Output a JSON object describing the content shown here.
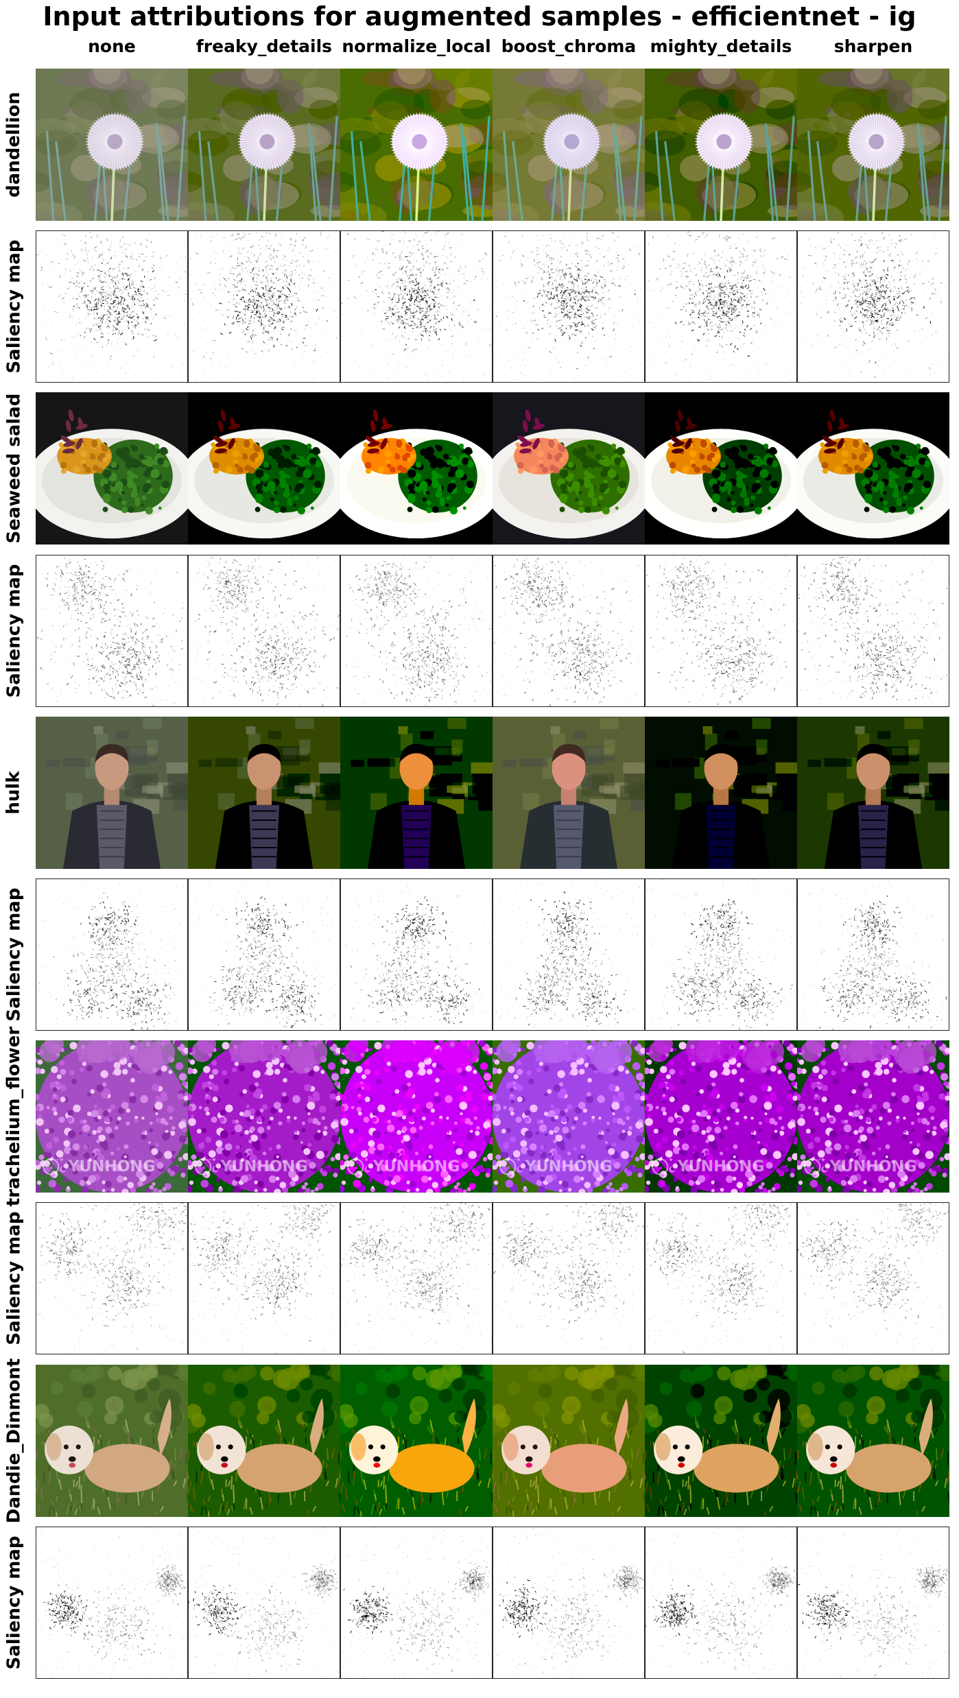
{
  "title": "Input attributions for augmented samples - efficientnet - ig",
  "columns": [
    "none",
    "freaky_details",
    "normalize_local",
    "boost_chroma",
    "mighty_details",
    "sharpen"
  ],
  "rows": [
    {
      "label": "dandellion",
      "kind": "photo",
      "subject": "dandelion"
    },
    {
      "label": "Saliency map",
      "kind": "saliency",
      "subject": "dandelion"
    },
    {
      "label": "Seaweed salad",
      "kind": "photo",
      "subject": "salad"
    },
    {
      "label": "Saliency map",
      "kind": "saliency",
      "subject": "salad"
    },
    {
      "label": "hulk",
      "kind": "photo",
      "subject": "person"
    },
    {
      "label": "Saliency map",
      "kind": "saliency",
      "subject": "person"
    },
    {
      "label": "trachelium_flower",
      "kind": "photo",
      "subject": "flower"
    },
    {
      "label": "Saliency map",
      "kind": "saliency",
      "subject": "flower"
    },
    {
      "label": "Dandie_Dinmont",
      "kind": "photo",
      "subject": "dog"
    },
    {
      "label": "Saliency map",
      "kind": "saliency",
      "subject": "dog"
    }
  ],
  "watermark_text": "YUNHONG"
}
